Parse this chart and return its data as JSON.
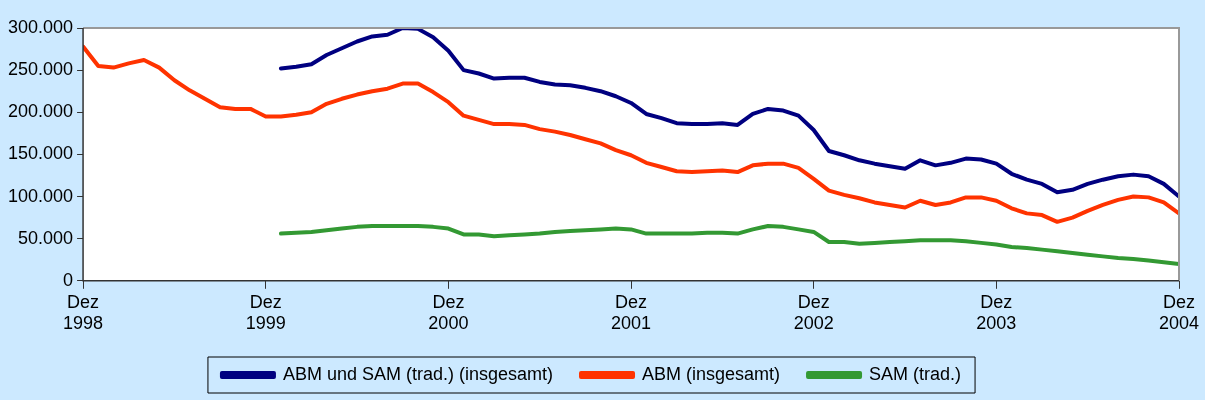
{
  "chart_data": {
    "type": "line",
    "x": [
      "1998-12",
      "1999-01",
      "1999-02",
      "1999-03",
      "1999-04",
      "1999-05",
      "1999-06",
      "1999-07",
      "1999-08",
      "1999-09",
      "1999-10",
      "1999-11",
      "1999-12",
      "2000-01",
      "2000-02",
      "2000-03",
      "2000-04",
      "2000-05",
      "2000-06",
      "2000-07",
      "2000-08",
      "2000-09",
      "2000-10",
      "2000-11",
      "2000-12",
      "2001-01",
      "2001-02",
      "2001-03",
      "2001-04",
      "2001-05",
      "2001-06",
      "2001-07",
      "2001-08",
      "2001-09",
      "2001-10",
      "2001-11",
      "2001-12",
      "2002-01",
      "2002-02",
      "2002-03",
      "2002-04",
      "2002-05",
      "2002-06",
      "2002-07",
      "2002-08",
      "2002-09",
      "2002-10",
      "2002-11",
      "2002-12",
      "2003-01",
      "2003-02",
      "2003-03",
      "2003-04",
      "2003-05",
      "2003-06",
      "2003-07",
      "2003-08",
      "2003-09",
      "2003-10",
      "2003-11",
      "2003-12",
      "2004-01",
      "2004-02",
      "2004-03",
      "2004-04",
      "2004-05",
      "2004-06",
      "2004-07",
      "2004-08",
      "2004-09",
      "2004-10",
      "2004-11",
      "2004-12"
    ],
    "series": [
      {
        "name": "ABM und SAM (trad.) (insgesamt)",
        "color": "#000080",
        "values": [
          null,
          null,
          null,
          null,
          null,
          null,
          null,
          null,
          null,
          null,
          null,
          null,
          null,
          252000,
          254000,
          257000,
          268000,
          276000,
          284000,
          290000,
          292000,
          300000,
          299000,
          289000,
          273000,
          250000,
          246000,
          240000,
          241000,
          241000,
          236000,
          233000,
          232000,
          229000,
          225000,
          219000,
          211000,
          198000,
          193000,
          187000,
          186000,
          186000,
          187000,
          185000,
          198000,
          204000,
          202000,
          196000,
          179000,
          154000,
          149000,
          143000,
          139000,
          136000,
          133000,
          143000,
          137000,
          140000,
          145000,
          144000,
          139000,
          127000,
          120000,
          115000,
          105000,
          108000,
          115000,
          120000,
          124000,
          126000,
          124000,
          115000,
          100000
        ]
      },
      {
        "name": "ABM (insgesamt)",
        "color": "#ff3300",
        "values": [
          278000,
          255000,
          253000,
          258000,
          262000,
          253000,
          238000,
          226000,
          216000,
          206000,
          204000,
          204000,
          195000,
          195000,
          197000,
          200000,
          210000,
          216000,
          221000,
          225000,
          228000,
          234000,
          234000,
          224000,
          212000,
          196000,
          191000,
          186000,
          186000,
          185000,
          180000,
          177000,
          173000,
          168000,
          163000,
          155000,
          149000,
          140000,
          135000,
          130000,
          129000,
          130000,
          131000,
          129000,
          137000,
          139000,
          139000,
          134000,
          121000,
          107000,
          102000,
          98000,
          93000,
          90000,
          87000,
          95000,
          90000,
          93000,
          99000,
          99000,
          95000,
          86000,
          80000,
          78000,
          70000,
          75000,
          83000,
          90000,
          96000,
          100000,
          99000,
          93000,
          80000
        ]
      },
      {
        "name": "SAM (trad.)",
        "color": "#339933",
        "values": [
          null,
          null,
          null,
          null,
          null,
          null,
          null,
          null,
          null,
          null,
          null,
          null,
          null,
          56000,
          57000,
          58000,
          60000,
          62000,
          64000,
          65000,
          65000,
          65000,
          65000,
          64000,
          62000,
          55000,
          55000,
          53000,
          54000,
          55000,
          56000,
          58000,
          59000,
          60000,
          61000,
          62000,
          61000,
          56000,
          56000,
          56000,
          56000,
          57000,
          57000,
          56000,
          61000,
          65000,
          64000,
          61000,
          58000,
          46000,
          46000,
          44000,
          45000,
          46000,
          47000,
          48000,
          48000,
          48000,
          47000,
          45000,
          43000,
          40000,
          39000,
          37000,
          35000,
          33000,
          31000,
          29000,
          27000,
          26000,
          24000,
          22000,
          20000
        ]
      }
    ],
    "xlim": [
      "1998-12",
      "2004-12"
    ],
    "xticks": [
      {
        "value": "1998-12",
        "label": "Dez 1998"
      },
      {
        "value": "1999-12",
        "label": "Dez 1999"
      },
      {
        "value": "2000-12",
        "label": "Dez 2000"
      },
      {
        "value": "2001-12",
        "label": "Dez 2001"
      },
      {
        "value": "2002-12",
        "label": "Dez 2002"
      },
      {
        "value": "2003-12",
        "label": "Dez 2003"
      },
      {
        "value": "2004-12",
        "label": "Dez 2004"
      }
    ],
    "ylim": [
      0,
      300000
    ],
    "yticks": [
      0,
      {
        "value": 50000,
        "label": "50.000"
      },
      {
        "value": 100000,
        "label": "100.000"
      },
      {
        "value": 150000,
        "label": "150.000"
      },
      {
        "value": 200000,
        "label": "200.000"
      },
      {
        "value": 250000,
        "label": "250.000"
      },
      {
        "value": 300000,
        "label": "300.000"
      }
    ],
    "legend": "bottom",
    "grid": false,
    "marker": "none",
    "line_style": "solid"
  }
}
